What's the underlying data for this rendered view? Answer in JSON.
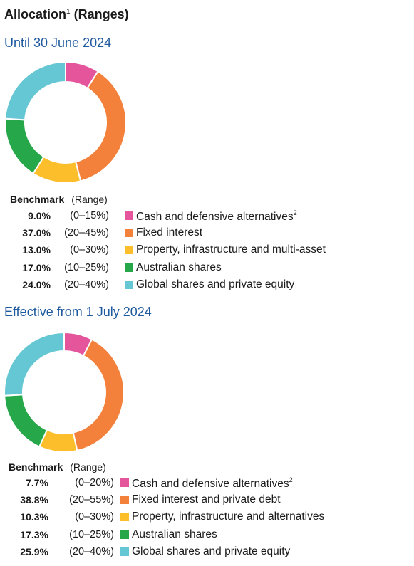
{
  "title": "Allocation",
  "title_sup": "1",
  "title_suffix": "(Ranges)",
  "charts_header": {
    "benchmark": "Benchmark",
    "range": "(Range)"
  },
  "chart_data": [
    {
      "type": "pie",
      "title": "Until 30 June 2024",
      "categories": [
        "Cash and defensive alternatives",
        "Fixed interest",
        "Property, infrastructure and multi-asset",
        "Australian shares",
        "Global shares and private equity"
      ],
      "category_notes": [
        "2",
        "",
        "",
        "",
        ""
      ],
      "values": [
        9.0,
        37.0,
        13.0,
        17.0,
        24.0
      ],
      "value_labels": [
        "9.0%",
        "37.0%",
        "13.0%",
        "17.0%",
        "24.0%"
      ],
      "ranges": [
        "(0–15%)",
        "(20–45%)",
        "(0–30%)",
        "(10–25%)",
        "(20–40%)"
      ],
      "colors": [
        "#e4559c",
        "#f3813b",
        "#fcbe2a",
        "#26a84a",
        "#64c7d3"
      ]
    },
    {
      "type": "pie",
      "title": "Effective from 1 July 2024",
      "categories": [
        "Cash and defensive alternatives",
        "Fixed interest and private debt",
        "Property, infrastructure and alternatives",
        "Australian shares",
        "Global shares and private equity"
      ],
      "category_notes": [
        "2",
        "",
        "",
        "",
        ""
      ],
      "values": [
        7.7,
        38.8,
        10.3,
        17.3,
        25.9
      ],
      "value_labels": [
        "7.7%",
        "38.8%",
        "10.3%",
        "17.3%",
        "25.9%"
      ],
      "ranges": [
        "(0–20%)",
        "(20–55%)",
        "(0–30%)",
        "(10–25%)",
        "(20–40%)"
      ],
      "colors": [
        "#e4559c",
        "#f3813b",
        "#fcbe2a",
        "#26a84a",
        "#64c7d3"
      ]
    }
  ]
}
